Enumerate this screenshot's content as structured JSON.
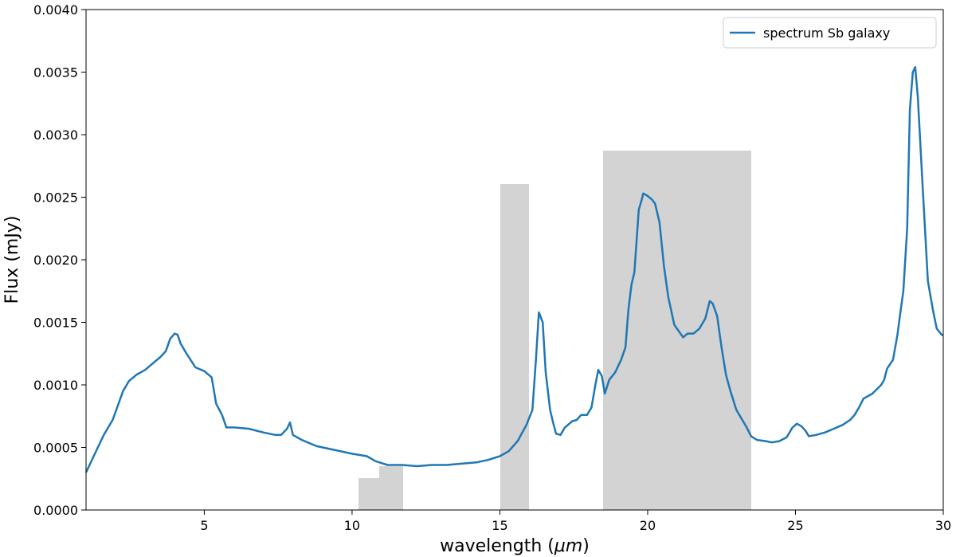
{
  "chart_data": {
    "type": "line",
    "title": "",
    "xlabel": "wavelength (",
    "xlabel_unit": "μm",
    "xlabel_close": ")",
    "ylabel": "Flux (mJy)",
    "xlim": [
      1,
      30
    ],
    "ylim": [
      0,
      0.004
    ],
    "grid": false,
    "legend_position": "top-right",
    "x_ticks": [
      5,
      10,
      15,
      20,
      25,
      30
    ],
    "x_tick_labels": [
      "5",
      "10",
      "15",
      "20",
      "25",
      "30"
    ],
    "y_ticks": [
      0,
      0.0005,
      0.001,
      0.0015,
      0.002,
      0.0025,
      0.003,
      0.0035,
      0.004
    ],
    "y_tick_labels": [
      "0.0000",
      "0.0005",
      "0.0010",
      "0.0015",
      "0.0020",
      "0.0025",
      "0.0030",
      "0.0035",
      "0.0040"
    ],
    "series": [
      {
        "name": "spectrum Sb galaxy",
        "color": "#1f77b4",
        "points": [
          [
            1.0,
            0.0003
          ],
          [
            1.3,
            0.00045
          ],
          [
            1.6,
            0.0006
          ],
          [
            1.9,
            0.00072
          ],
          [
            2.1,
            0.00085
          ],
          [
            2.25,
            0.00095
          ],
          [
            2.45,
            0.00103
          ],
          [
            2.7,
            0.00108
          ],
          [
            3.0,
            0.00112
          ],
          [
            3.3,
            0.00118
          ],
          [
            3.5,
            0.00122
          ],
          [
            3.7,
            0.00127
          ],
          [
            3.85,
            0.00137
          ],
          [
            4.0,
            0.00141
          ],
          [
            4.1,
            0.0014
          ],
          [
            4.2,
            0.00133
          ],
          [
            4.4,
            0.00125
          ],
          [
            4.7,
            0.00114
          ],
          [
            5.0,
            0.00111
          ],
          [
            5.25,
            0.00106
          ],
          [
            5.4,
            0.00085
          ],
          [
            5.6,
            0.00076
          ],
          [
            5.75,
            0.00066
          ],
          [
            6.0,
            0.00066
          ],
          [
            6.5,
            0.00065
          ],
          [
            7.0,
            0.00062
          ],
          [
            7.4,
            0.0006
          ],
          [
            7.6,
            0.0006
          ],
          [
            7.8,
            0.00065
          ],
          [
            7.9,
            0.0007
          ],
          [
            8.0,
            0.0006
          ],
          [
            8.3,
            0.00056
          ],
          [
            8.8,
            0.00051
          ],
          [
            9.4,
            0.00048
          ],
          [
            10.0,
            0.00045
          ],
          [
            10.5,
            0.00043
          ],
          [
            10.8,
            0.00039
          ],
          [
            11.2,
            0.00036
          ],
          [
            11.7,
            0.00036
          ],
          [
            12.2,
            0.00035
          ],
          [
            12.7,
            0.00036
          ],
          [
            13.2,
            0.00036
          ],
          [
            13.7,
            0.00037
          ],
          [
            14.2,
            0.00038
          ],
          [
            14.6,
            0.0004
          ],
          [
            15.0,
            0.00043
          ],
          [
            15.3,
            0.00047
          ],
          [
            15.6,
            0.00055
          ],
          [
            15.9,
            0.00068
          ],
          [
            16.1,
            0.0008
          ],
          [
            16.22,
            0.0012
          ],
          [
            16.32,
            0.00158
          ],
          [
            16.45,
            0.0015
          ],
          [
            16.55,
            0.0011
          ],
          [
            16.7,
            0.0008
          ],
          [
            16.8,
            0.0007
          ],
          [
            16.9,
            0.00061
          ],
          [
            17.05,
            0.0006
          ],
          [
            17.2,
            0.00066
          ],
          [
            17.45,
            0.00071
          ],
          [
            17.6,
            0.00072
          ],
          [
            17.75,
            0.00076
          ],
          [
            17.95,
            0.00076
          ],
          [
            18.1,
            0.00082
          ],
          [
            18.23,
            0.001
          ],
          [
            18.33,
            0.00112
          ],
          [
            18.45,
            0.00107
          ],
          [
            18.55,
            0.00093
          ],
          [
            18.7,
            0.00104
          ],
          [
            18.9,
            0.0011
          ],
          [
            19.1,
            0.0012
          ],
          [
            19.25,
            0.0013
          ],
          [
            19.35,
            0.0016
          ],
          [
            19.45,
            0.0018
          ],
          [
            19.55,
            0.0019
          ],
          [
            19.7,
            0.0024
          ],
          [
            19.8,
            0.00248
          ],
          [
            19.85,
            0.00253
          ],
          [
            20.0,
            0.00251
          ],
          [
            20.15,
            0.00248
          ],
          [
            20.25,
            0.00245
          ],
          [
            20.4,
            0.0023
          ],
          [
            20.55,
            0.00195
          ],
          [
            20.7,
            0.0017
          ],
          [
            20.9,
            0.00148
          ],
          [
            21.05,
            0.00143
          ],
          [
            21.2,
            0.00138
          ],
          [
            21.35,
            0.00141
          ],
          [
            21.55,
            0.00141
          ],
          [
            21.75,
            0.00145
          ],
          [
            21.95,
            0.00153
          ],
          [
            22.1,
            0.00167
          ],
          [
            22.2,
            0.00165
          ],
          [
            22.35,
            0.00155
          ],
          [
            22.5,
            0.0013
          ],
          [
            22.65,
            0.00108
          ],
          [
            22.8,
            0.00095
          ],
          [
            23.0,
            0.0008
          ],
          [
            23.15,
            0.00074
          ],
          [
            23.35,
            0.00066
          ],
          [
            23.5,
            0.00059
          ],
          [
            23.7,
            0.00056
          ],
          [
            24.0,
            0.00055
          ],
          [
            24.2,
            0.00054
          ],
          [
            24.45,
            0.00055
          ],
          [
            24.7,
            0.00058
          ],
          [
            24.9,
            0.00066
          ],
          [
            25.05,
            0.00069
          ],
          [
            25.2,
            0.00067
          ],
          [
            25.35,
            0.00063
          ],
          [
            25.45,
            0.00059
          ],
          [
            25.7,
            0.0006
          ],
          [
            26.0,
            0.00062
          ],
          [
            26.3,
            0.00065
          ],
          [
            26.6,
            0.00068
          ],
          [
            26.85,
            0.00072
          ],
          [
            27.0,
            0.00076
          ],
          [
            27.15,
            0.00082
          ],
          [
            27.3,
            0.00089
          ],
          [
            27.6,
            0.00093
          ],
          [
            27.9,
            0.001
          ],
          [
            28.0,
            0.00104
          ],
          [
            28.1,
            0.00113
          ],
          [
            28.3,
            0.0012
          ],
          [
            28.45,
            0.0014
          ],
          [
            28.55,
            0.00158
          ],
          [
            28.65,
            0.00175
          ],
          [
            28.78,
            0.00225
          ],
          [
            28.87,
            0.0032
          ],
          [
            28.97,
            0.0035
          ],
          [
            29.05,
            0.00354
          ],
          [
            29.14,
            0.0033
          ],
          [
            29.27,
            0.00273
          ],
          [
            29.48,
            0.00183
          ],
          [
            29.65,
            0.0016
          ],
          [
            29.78,
            0.00145
          ],
          [
            29.95,
            0.0014
          ],
          [
            30.0,
            0.0014
          ]
        ],
        "continuation_note": ""
      }
    ]
  }
}
